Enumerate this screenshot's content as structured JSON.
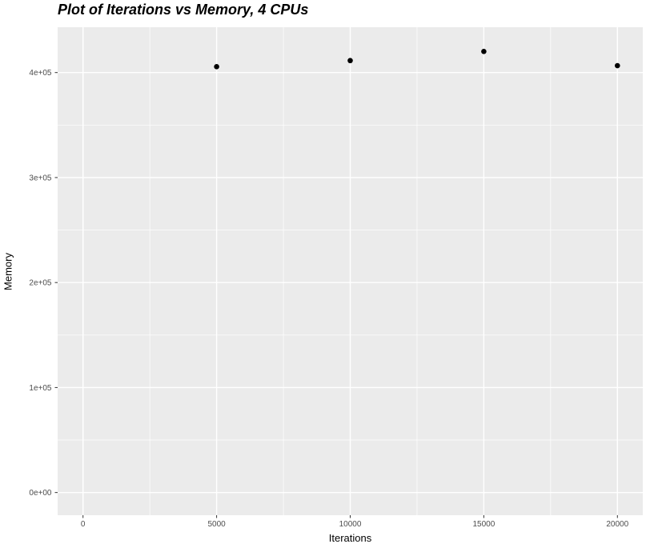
{
  "chart_data": {
    "type": "scatter",
    "title": "Plot of Iterations vs Memory, 4 CPUs",
    "xlabel": "Iterations",
    "ylabel": "Memory",
    "points": [
      {
        "x": 5000,
        "y": 405600
      },
      {
        "x": 10000,
        "y": 411400
      },
      {
        "x": 15000,
        "y": 420100
      },
      {
        "x": 20000,
        "y": 406600
      }
    ],
    "x_ticks": [
      {
        "value": 0,
        "label": "0"
      },
      {
        "value": 5000,
        "label": "5000"
      },
      {
        "value": 10000,
        "label": "10000"
      },
      {
        "value": 15000,
        "label": "15000"
      },
      {
        "value": 20000,
        "label": "20000"
      }
    ],
    "y_ticks": [
      {
        "value": 0,
        "label": "0e+00"
      },
      {
        "value": 100000,
        "label": "1e+05"
      },
      {
        "value": 200000,
        "label": "2e+05"
      },
      {
        "value": 300000,
        "label": "3e+05"
      },
      {
        "value": 400000,
        "label": "4e+05"
      }
    ],
    "x_minor": [
      2500,
      7500,
      12500,
      17500
    ],
    "y_minor": [
      50000,
      150000,
      250000,
      350000
    ],
    "xlim": [
      -950,
      20950
    ],
    "ylim": [
      -21600,
      443200
    ],
    "grid": true,
    "legend": "none",
    "colors": {
      "panel_bg": "#EBEBEB",
      "grid": "#FFFFFF",
      "point": "#000000",
      "tick": "#333333",
      "tick_label": "#4D4D4D",
      "text": "#000000",
      "background": "#FFFFFF"
    }
  }
}
